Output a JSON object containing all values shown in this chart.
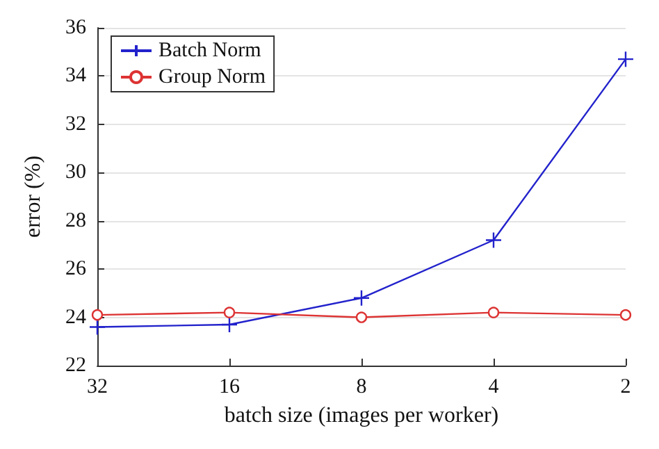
{
  "chart_data": {
    "type": "line",
    "xlabel": "batch size (images per worker)",
    "ylabel": "error (%)",
    "categories": [
      "32",
      "16",
      "8",
      "4",
      "2"
    ],
    "series": [
      {
        "name": "Batch Norm",
        "color": "#2222cc",
        "marker": "cross",
        "values": [
          23.6,
          23.7,
          24.8,
          27.2,
          34.7
        ]
      },
      {
        "name": "Group Norm",
        "color": "#dd3333",
        "marker": "circle",
        "values": [
          24.1,
          24.2,
          24.0,
          24.2,
          24.1
        ]
      }
    ],
    "ylim": [
      22,
      36
    ],
    "yticks": [
      22,
      24,
      26,
      28,
      30,
      32,
      34,
      36
    ],
    "grid": "y",
    "legend": "top left",
    "line_style": "solid"
  }
}
